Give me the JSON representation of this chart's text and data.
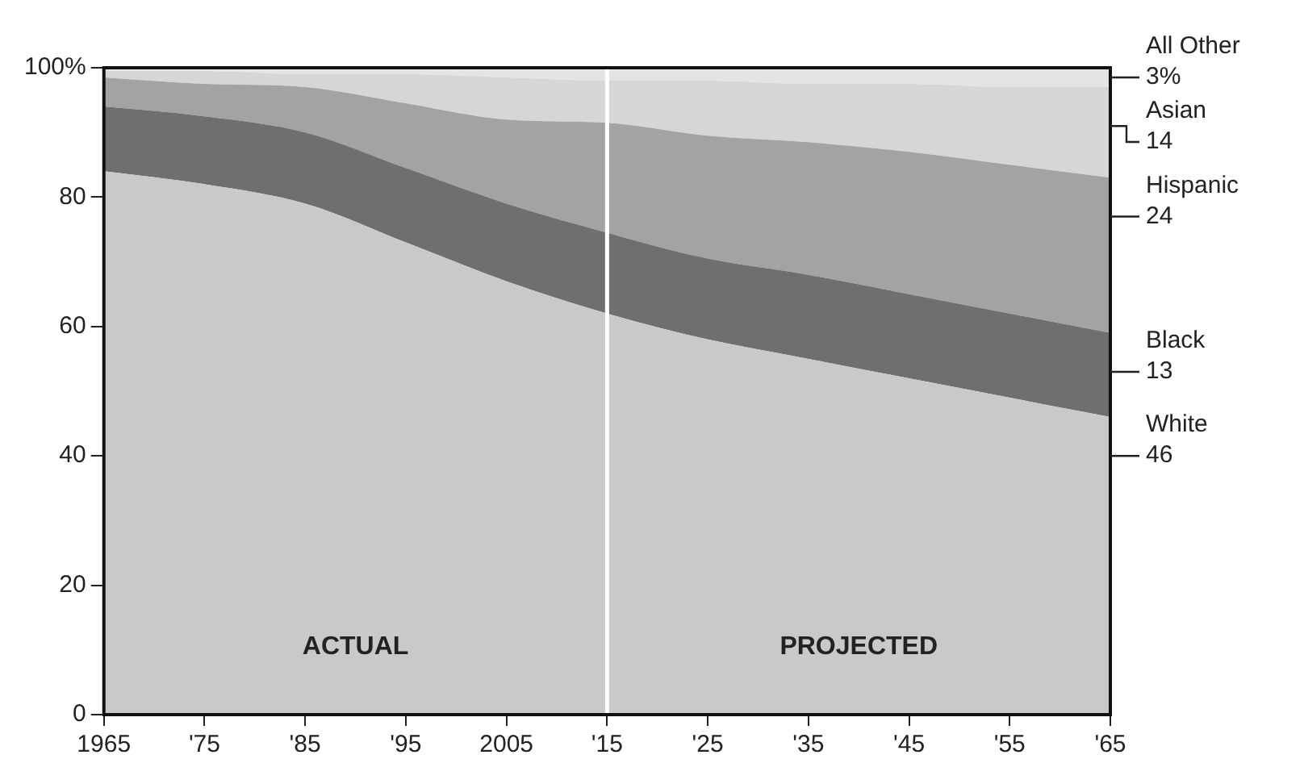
{
  "chart_data": {
    "type": "area",
    "stacked": true,
    "x": [
      1965,
      1975,
      1985,
      1995,
      2005,
      2015,
      2025,
      2035,
      2045,
      2055,
      2065
    ],
    "series": [
      {
        "name": "White",
        "color": "#c9c9c9",
        "values": [
          84,
          82,
          79,
          73,
          67,
          62,
          58,
          55,
          52,
          49,
          46
        ],
        "value_labels": [
          null,
          null,
          null,
          null,
          null,
          null,
          null,
          null,
          null,
          null,
          "46"
        ]
      },
      {
        "name": "Black",
        "color": "#6f6f6f",
        "values": [
          10,
          10.5,
          11,
          11.5,
          12,
          12.5,
          12.5,
          13,
          13,
          13,
          13
        ],
        "value_labels": [
          null,
          null,
          null,
          null,
          null,
          null,
          null,
          null,
          null,
          null,
          "13"
        ]
      },
      {
        "name": "Hispanic",
        "color": "#a3a3a3",
        "values": [
          4.5,
          5,
          7,
          10,
          13,
          17,
          19,
          20.5,
          22,
          23,
          24
        ],
        "value_labels": [
          null,
          null,
          null,
          null,
          null,
          null,
          null,
          null,
          null,
          null,
          "24"
        ]
      },
      {
        "name": "Asian",
        "color": "#d6d6d6",
        "values": [
          1,
          2,
          2,
          4.5,
          6.5,
          6.5,
          8.5,
          9,
          10.5,
          12,
          14
        ],
        "value_labels": [
          null,
          null,
          null,
          null,
          null,
          null,
          null,
          null,
          null,
          null,
          "14"
        ]
      },
      {
        "name": "All Other",
        "color": "#e4e4e4",
        "values": [
          0.5,
          0.5,
          1,
          1,
          1.5,
          2,
          2,
          2.5,
          2.5,
          3,
          3
        ],
        "value_labels": [
          null,
          null,
          null,
          null,
          null,
          null,
          null,
          null,
          null,
          null,
          "3%"
        ]
      }
    ],
    "xlim": [
      1965,
      2065
    ],
    "xticks": [
      1965,
      {
        "value": 1975,
        "label": "'75"
      },
      {
        "value": 1985,
        "label": "'85"
      },
      {
        "value": 1995,
        "label": "'95"
      },
      2005,
      {
        "value": 2015,
        "label": "'15"
      },
      {
        "value": 2025,
        "label": "'25"
      },
      {
        "value": 2035,
        "label": "'35"
      },
      {
        "value": 2045,
        "label": "'45"
      },
      {
        "value": 2055,
        "label": "'55"
      },
      {
        "value": 2065,
        "label": "'65"
      }
    ],
    "ylim": [
      0,
      100
    ],
    "yticks": [
      0,
      20,
      40,
      60,
      80,
      {
        "value": 100,
        "label": "100%"
      }
    ],
    "ref_lines": [
      {
        "axis": "x",
        "value": 2015,
        "color": "#ffffff"
      }
    ],
    "annotations": [
      "ACTUAL",
      "PROJECTED"
    ],
    "grid": false,
    "legend": false
  }
}
